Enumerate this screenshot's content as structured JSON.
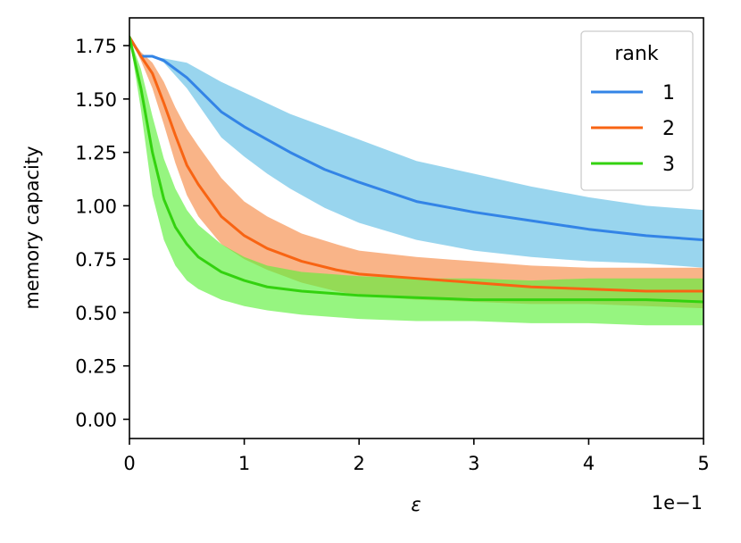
{
  "chart_data": {
    "type": "line",
    "title": "",
    "xlabel": "ε",
    "ylabel": "memory capacity",
    "x_offset_text": "1e−1",
    "xlim": [
      0,
      5
    ],
    "ylim": [
      -0.09,
      1.88
    ],
    "x_ticks": [
      0,
      1,
      2,
      3,
      4,
      5
    ],
    "x_tick_labels": [
      "0",
      "1",
      "2",
      "3",
      "4",
      "5"
    ],
    "y_ticks": [
      0.0,
      0.25,
      0.5,
      0.75,
      1.0,
      1.25,
      1.5,
      1.75
    ],
    "y_tick_labels": [
      "0.00",
      "0.25",
      "0.50",
      "0.75",
      "1.00",
      "1.25",
      "1.50",
      "1.75"
    ],
    "grid": false,
    "legend": {
      "title": "rank",
      "placement": "top-right",
      "entries": [
        "1",
        "2",
        "3"
      ]
    },
    "series": [
      {
        "name": "1",
        "color": "#3384e6",
        "band_color": "#87ceeb",
        "band_opacity": 0.85,
        "x": [
          0,
          0.1,
          0.2,
          0.3,
          0.5,
          0.8,
          1.0,
          1.2,
          1.4,
          1.7,
          2.0,
          2.5,
          3.0,
          3.5,
          4.0,
          4.5,
          5.0
        ],
        "y": [
          1.79,
          1.7,
          1.7,
          1.68,
          1.6,
          1.44,
          1.37,
          1.31,
          1.25,
          1.17,
          1.11,
          1.02,
          0.97,
          0.93,
          0.89,
          0.86,
          0.84
        ],
        "upper": [
          1.79,
          1.7,
          1.7,
          1.69,
          1.67,
          1.58,
          1.53,
          1.48,
          1.43,
          1.37,
          1.31,
          1.21,
          1.15,
          1.09,
          1.04,
          1.0,
          0.98
        ],
        "lower": [
          1.79,
          1.7,
          1.7,
          1.67,
          1.55,
          1.32,
          1.23,
          1.15,
          1.08,
          0.99,
          0.92,
          0.84,
          0.79,
          0.76,
          0.74,
          0.73,
          0.71
        ]
      },
      {
        "name": "2",
        "color": "#f86413",
        "band_color": "#f8a16a",
        "band_opacity": 0.8,
        "x": [
          0,
          0.1,
          0.2,
          0.3,
          0.4,
          0.5,
          0.6,
          0.8,
          1.0,
          1.2,
          1.5,
          1.8,
          2.0,
          2.5,
          3.0,
          3.5,
          4.0,
          4.5,
          5.0
        ],
        "y": [
          1.79,
          1.7,
          1.62,
          1.48,
          1.33,
          1.19,
          1.1,
          0.95,
          0.86,
          0.8,
          0.74,
          0.7,
          0.68,
          0.66,
          0.64,
          0.62,
          0.61,
          0.6,
          0.6
        ],
        "upper": [
          1.79,
          1.72,
          1.67,
          1.58,
          1.46,
          1.36,
          1.28,
          1.13,
          1.02,
          0.95,
          0.87,
          0.82,
          0.79,
          0.76,
          0.74,
          0.72,
          0.71,
          0.71,
          0.71
        ],
        "lower": [
          1.79,
          1.68,
          1.55,
          1.38,
          1.2,
          1.05,
          0.95,
          0.82,
          0.75,
          0.7,
          0.64,
          0.6,
          0.58,
          0.56,
          0.55,
          0.54,
          0.54,
          0.53,
          0.52
        ]
      },
      {
        "name": "3",
        "color": "#33d20f",
        "band_color": "#5ef03c",
        "band_opacity": 0.65,
        "x": [
          0,
          0.1,
          0.2,
          0.3,
          0.4,
          0.5,
          0.6,
          0.8,
          1.0,
          1.2,
          1.5,
          2.0,
          2.5,
          3.0,
          3.5,
          4.0,
          4.5,
          5.0
        ],
        "y": [
          1.79,
          1.55,
          1.25,
          1.03,
          0.9,
          0.82,
          0.76,
          0.69,
          0.65,
          0.62,
          0.6,
          0.58,
          0.57,
          0.56,
          0.56,
          0.56,
          0.56,
          0.55
        ],
        "upper": [
          1.79,
          1.64,
          1.42,
          1.22,
          1.08,
          0.98,
          0.91,
          0.82,
          0.76,
          0.72,
          0.69,
          0.67,
          0.66,
          0.66,
          0.65,
          0.66,
          0.66,
          0.66
        ],
        "lower": [
          1.79,
          1.45,
          1.05,
          0.84,
          0.72,
          0.65,
          0.61,
          0.56,
          0.53,
          0.51,
          0.49,
          0.47,
          0.46,
          0.46,
          0.45,
          0.45,
          0.44,
          0.44
        ]
      }
    ]
  }
}
